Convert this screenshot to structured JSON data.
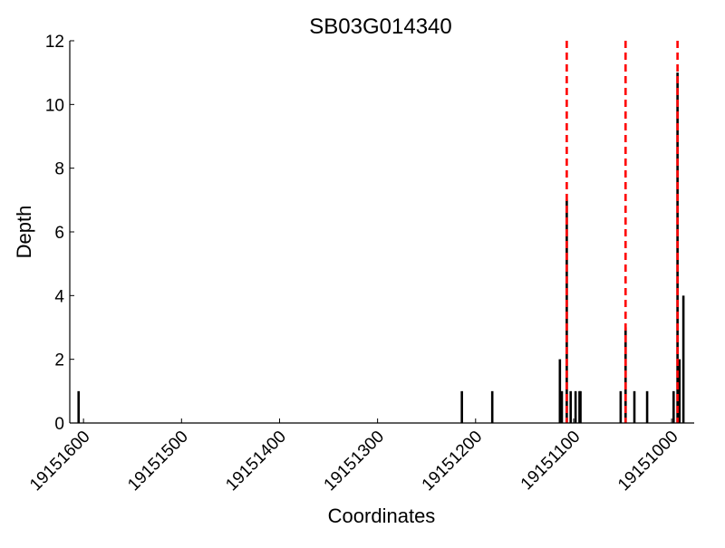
{
  "chart_data": {
    "type": "bar",
    "title": "SB03G014340",
    "xlabel": "Coordinates",
    "ylabel": "Depth",
    "xlim": [
      19151614,
      19150977
    ],
    "ylim": [
      0,
      12
    ],
    "x_reversed": true,
    "grid": false,
    "xticks": [
      19151600,
      19151500,
      19151400,
      19151300,
      19151200,
      19151100,
      19151000
    ],
    "xtick_labels": [
      "19151600",
      "19151500",
      "19151400",
      "19151300",
      "19151200",
      "19151100",
      "19151000"
    ],
    "yticks": [
      0,
      2,
      4,
      6,
      8,
      10,
      12
    ],
    "ytick_labels": [
      "0",
      "2",
      "4",
      "6",
      "8",
      "10",
      "12"
    ],
    "bars": [
      {
        "x": 19151605,
        "depth": 1
      },
      {
        "x": 19151214,
        "depth": 1
      },
      {
        "x": 19151183,
        "depth": 1
      },
      {
        "x": 19151114,
        "depth": 2
      },
      {
        "x": 19151112,
        "depth": 1
      },
      {
        "x": 19151107,
        "depth": 7
      },
      {
        "x": 19151103,
        "depth": 1
      },
      {
        "x": 19151098,
        "depth": 1
      },
      {
        "x": 19151094,
        "depth": 1
      },
      {
        "x": 19151093,
        "depth": 1
      },
      {
        "x": 19151052,
        "depth": 1
      },
      {
        "x": 19151047,
        "depth": 3
      },
      {
        "x": 19151038,
        "depth": 1
      },
      {
        "x": 19151025,
        "depth": 1
      },
      {
        "x": 19150998,
        "depth": 1
      },
      {
        "x": 19150994,
        "depth": 11
      },
      {
        "x": 19150992,
        "depth": 2
      },
      {
        "x": 19150988,
        "depth": 4
      }
    ],
    "vlines": [
      19151107,
      19151047,
      19150994
    ],
    "bar_color": "#000000",
    "vline_color": "#ff0000"
  }
}
